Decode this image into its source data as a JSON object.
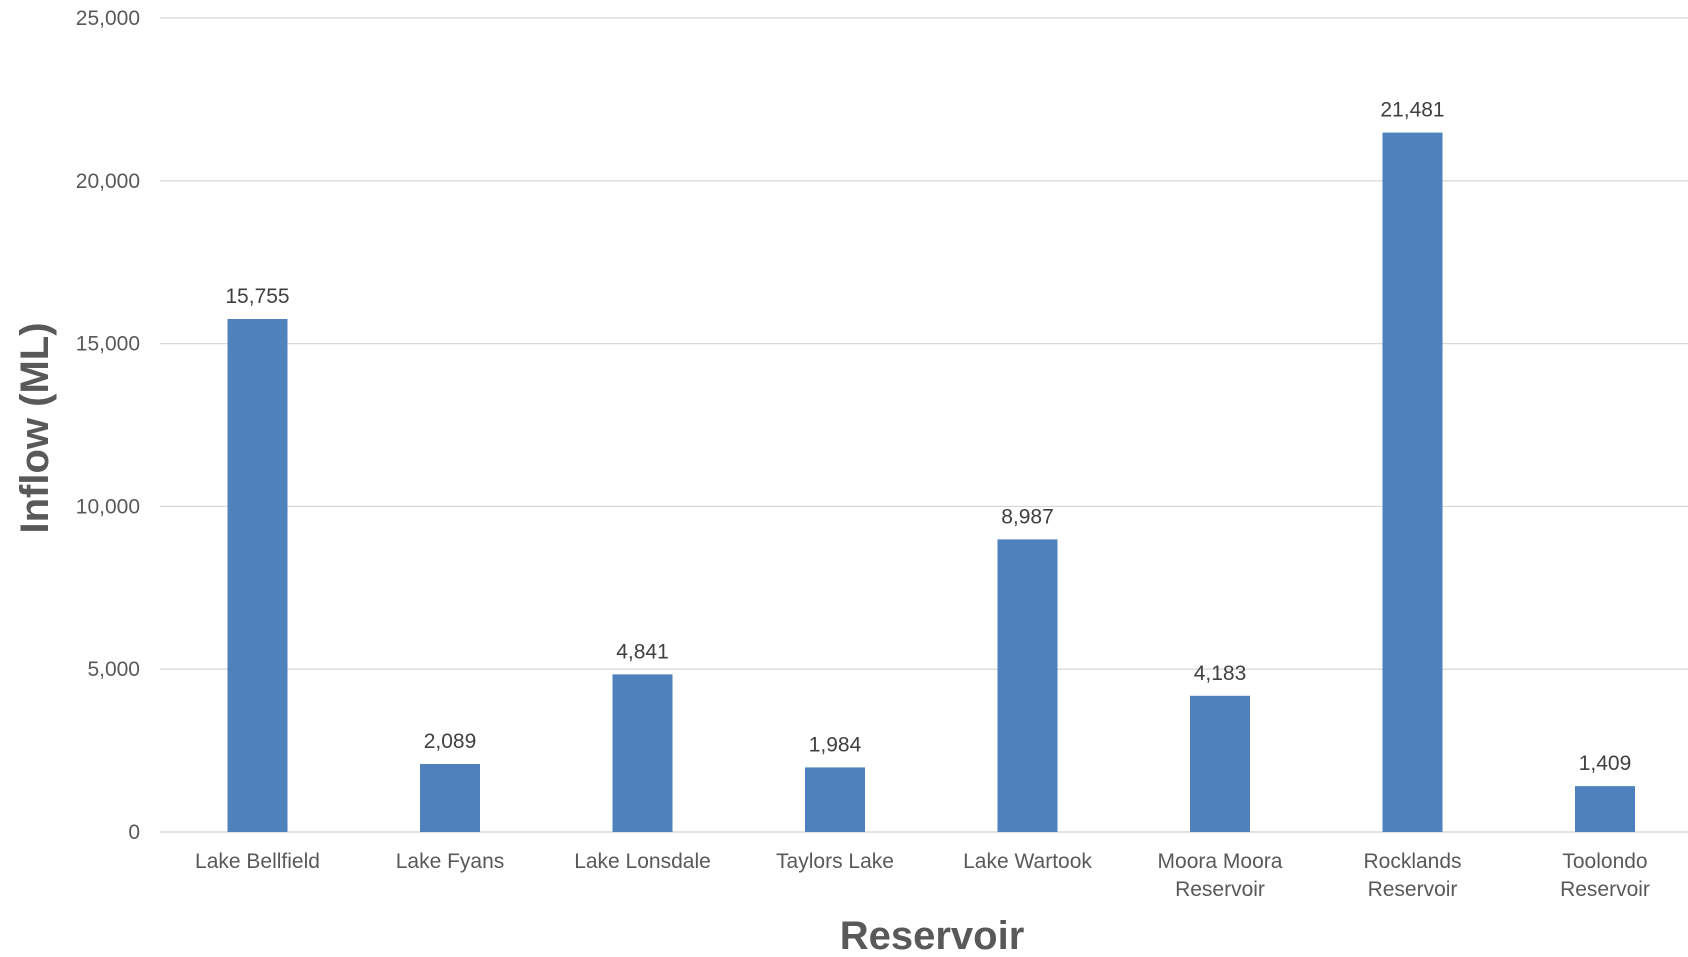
{
  "chart_data": {
    "type": "bar",
    "title": "",
    "xlabel": "Reservoir",
    "ylabel": "Inflow (ML)",
    "categories": [
      [
        "Lake Bellfield"
      ],
      [
        "Lake Fyans"
      ],
      [
        "Lake Lonsdale"
      ],
      [
        "Taylors Lake"
      ],
      [
        "Lake Wartook"
      ],
      [
        "Moora Moora",
        "Reservoir"
      ],
      [
        "Rocklands",
        "Reservoir"
      ],
      [
        "Toolondo",
        "Reservoir"
      ]
    ],
    "values": [
      15755,
      2089,
      4841,
      1984,
      8987,
      4183,
      21481,
      1409
    ],
    "data_labels": [
      "15,755",
      "2,089",
      "4,841",
      "1,984",
      "8,987",
      "4,183",
      "21,481",
      "1,409"
    ],
    "ylim": [
      0,
      25000
    ],
    "yticks": [
      0,
      5000,
      10000,
      15000,
      20000,
      25000
    ],
    "ytick_labels": [
      "0",
      "5,000",
      "10,000",
      "15,000",
      "20,000",
      "25,000"
    ],
    "grid": true,
    "legend": "none",
    "bar_color": "#4f81bd"
  }
}
